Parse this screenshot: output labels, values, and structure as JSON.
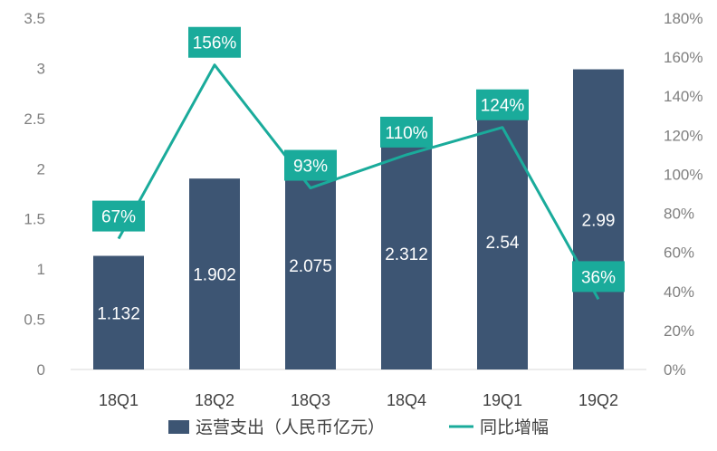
{
  "chart_data": {
    "type": "bar",
    "categories": [
      "18Q1",
      "18Q2",
      "18Q3",
      "18Q4",
      "19Q1",
      "19Q2"
    ],
    "series": [
      {
        "name": "运营支出（人民币亿元）",
        "type": "bar",
        "axis": "left",
        "values": [
          1.132,
          1.902,
          2.075,
          2.312,
          2.54,
          2.99
        ],
        "labels": [
          "1.132",
          "1.902",
          "2.075",
          "2.312",
          "2.54",
          "2.99"
        ],
        "color": "#3d5573"
      },
      {
        "name": "同比增幅",
        "type": "line",
        "axis": "right",
        "values": [
          67,
          156,
          93,
          110,
          124,
          36
        ],
        "labels": [
          "67%",
          "156%",
          "93%",
          "110%",
          "124%",
          "36%"
        ],
        "color": "#1aab9b"
      }
    ],
    "y_left": {
      "min": 0,
      "max": 3.5,
      "ticks": [
        "0",
        "0.5",
        "1",
        "1.5",
        "2",
        "2.5",
        "3",
        "3.5"
      ]
    },
    "y_right": {
      "min": 0,
      "max": 180,
      "ticks": [
        "0%",
        "20%",
        "40%",
        "60%",
        "80%",
        "100%",
        "120%",
        "140%",
        "160%",
        "180%"
      ]
    },
    "grid": false,
    "legend": "bottom-center"
  }
}
